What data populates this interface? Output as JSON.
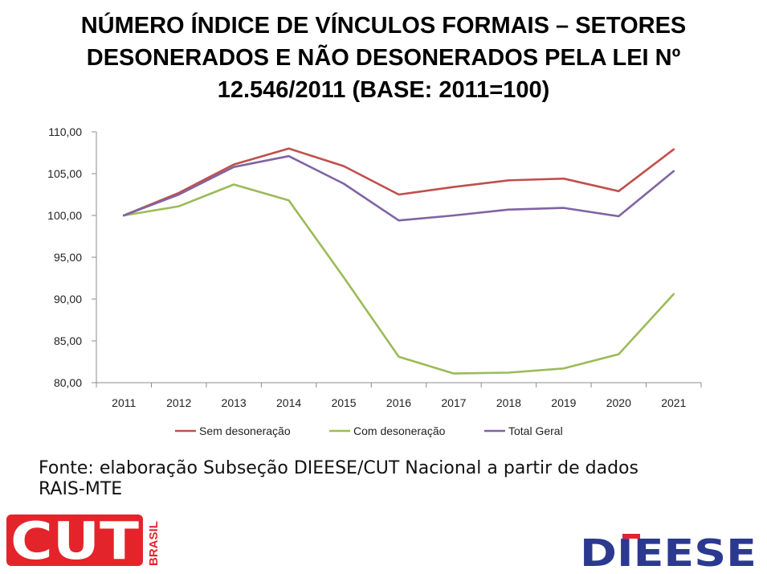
{
  "title_lines": [
    "NÚMERO ÍNDICE DE VÍNCULOS FORMAIS – SETORES",
    "DESONERADOS E NÃO DESONERADOS PELA LEI Nº",
    "12.546/2011 (BASE: 2011=100)"
  ],
  "source_lines": [
    "Fonte: elaboração Subseção DIEESE/CUT Nacional a partir de dados",
    "RAIS-MTE"
  ],
  "logos": {
    "cut": {
      "text": "CUT",
      "side_text": "BRASIL",
      "color": "#e3242b"
    },
    "dieese": {
      "text": "DIEESE",
      "color": "#2b3990",
      "accent": "#e3242b"
    }
  },
  "chart_data": {
    "type": "line",
    "title": "NÚMERO ÍNDICE DE VÍNCULOS FORMAIS – SETORES DESONERADOS E NÃO DESONERADOS PELA LEI Nº 12.546/2011 (BASE: 2011=100)",
    "categories": [
      "2011",
      "2012",
      "2013",
      "2014",
      "2015",
      "2016",
      "2017",
      "2018",
      "2019",
      "2020",
      "2021"
    ],
    "y_ticks": [
      "110,00",
      "105,00",
      "100,00",
      "95,00",
      "90,00",
      "85,00",
      "80,00"
    ],
    "ylim": [
      80,
      110
    ],
    "y_step": 5,
    "grid": false,
    "legend": "bottom",
    "series": [
      {
        "name": "Sem desoneração",
        "color": "#c0504d",
        "values": [
          100.0,
          102.7,
          106.1,
          108.0,
          105.9,
          102.5,
          103.4,
          104.2,
          104.4,
          102.9,
          107.9
        ]
      },
      {
        "name": "Com desoneração",
        "color": "#9bbb59",
        "values": [
          100.0,
          101.1,
          103.7,
          101.8,
          92.6,
          83.1,
          81.1,
          81.2,
          81.7,
          83.4,
          90.6
        ]
      },
      {
        "name": "Total Geral",
        "color": "#8064a2",
        "values": [
          100.0,
          102.5,
          105.8,
          107.1,
          103.8,
          99.4,
          100.0,
          100.7,
          100.9,
          99.9,
          105.3
        ]
      }
    ]
  }
}
